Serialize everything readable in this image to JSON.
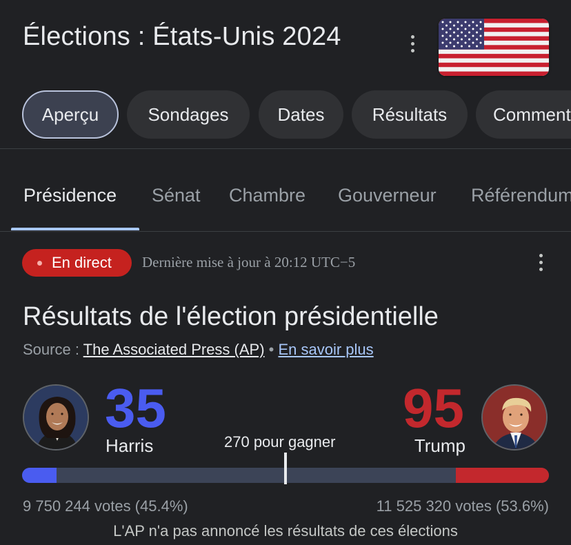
{
  "header": {
    "title": "Élections : États-Unis 2024",
    "flag_icon": "us-flag-icon"
  },
  "chips": [
    {
      "label": "Aperçu",
      "active": true
    },
    {
      "label": "Sondages",
      "active": false
    },
    {
      "label": "Dates",
      "active": false
    },
    {
      "label": "Résultats",
      "active": false
    },
    {
      "label": "Commentaires",
      "active": false
    }
  ],
  "tabs": [
    {
      "label": "Présidence",
      "active": true
    },
    {
      "label": "Sénat",
      "active": false
    },
    {
      "label": "Chambre",
      "active": false
    },
    {
      "label": "Gouverneur",
      "active": false
    },
    {
      "label": "Référendums",
      "active": false
    }
  ],
  "status": {
    "live_label": "En direct",
    "updated": "Dernière mise à jour à 20:12 UTC−5"
  },
  "results": {
    "title": "Résultats de l'élection présidentielle",
    "source_prefix": "Source : ",
    "source_link": "The Associated Press (AP)",
    "separator": " • ",
    "more_link": "En savoir plus",
    "to_win": "270 pour gagner",
    "harris": {
      "name": "Harris",
      "electoral_votes": "35",
      "votes_text": "9 750 244 votes (45.4%)",
      "color": "#4a5cf0"
    },
    "trump": {
      "name": "Trump",
      "electoral_votes": "95",
      "votes_text": "11 525 320 votes (53.6%)",
      "color": "#c3282d"
    },
    "electoral_total": 538,
    "note": "L'AP n'a pas annoncé les résultats de ces élections"
  }
}
